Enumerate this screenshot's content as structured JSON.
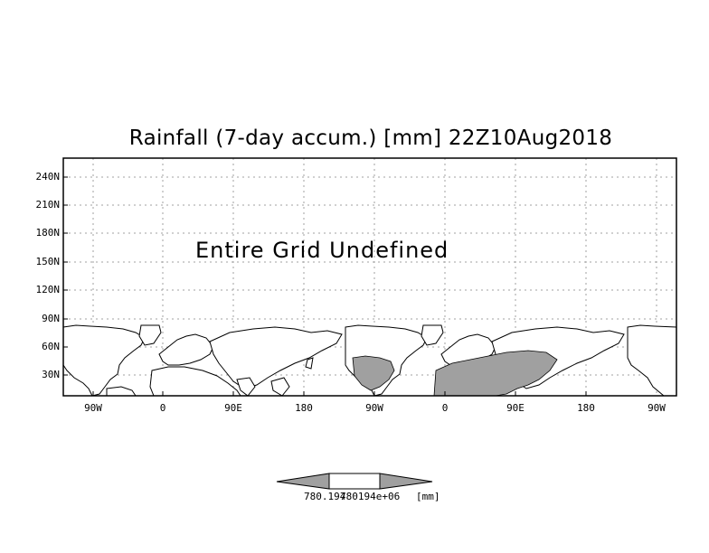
{
  "title": "Rainfall (7-day accum.) [mm] 22Z10Aug2018",
  "message": "Entire Grid Undefined",
  "y_ticks": [
    "240N",
    "210N",
    "180N",
    "150N",
    "120N",
    "90N",
    "60N",
    "30N"
  ],
  "x_ticks": [
    "90W",
    "0",
    "90E",
    "180",
    "90W",
    "0",
    "90E",
    "180",
    "90W"
  ],
  "colorbar": {
    "label_left": "780.194",
    "label_mid": "780194e+06",
    "label_unit": "[mm]",
    "arrow_color": "#a0a0a0",
    "center_color": "#ffffff"
  },
  "land_color": "#ffffff",
  "shaded_color": "#a0a0a0",
  "grid": "dotted"
}
